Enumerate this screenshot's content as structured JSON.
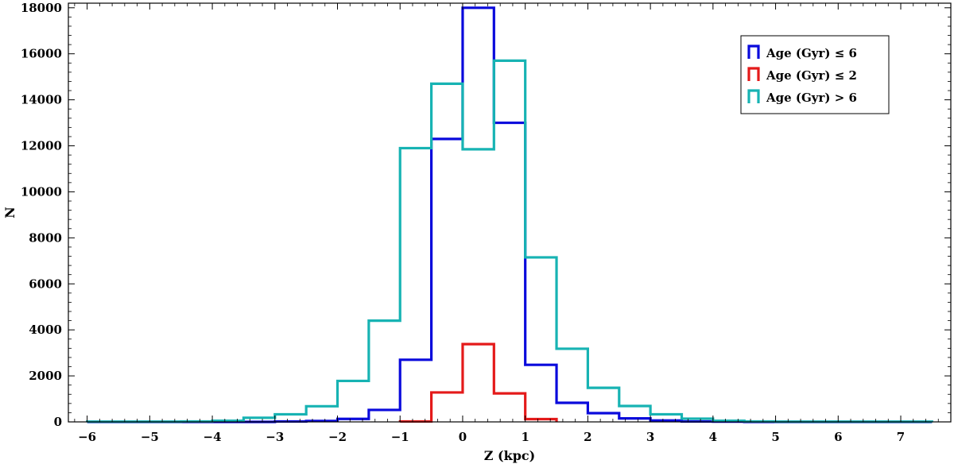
{
  "chart_data": {
    "type": "histogram",
    "xlabel": "Z (kpc)",
    "ylabel": "N",
    "xlim": [
      -6.3,
      7.8
    ],
    "ylim": [
      0,
      18200
    ],
    "xticks": [
      -6,
      -5,
      -4,
      -3,
      -2,
      -1,
      0,
      1,
      2,
      3,
      4,
      5,
      6,
      7
    ],
    "xtick_labels": [
      "−6",
      "−5",
      "−4",
      "−3",
      "−2",
      "−1",
      "0",
      "1",
      "2",
      "3",
      "4",
      "5",
      "6",
      "7"
    ],
    "yticks": [
      0,
      2000,
      4000,
      6000,
      8000,
      10000,
      12000,
      14000,
      16000,
      18000
    ],
    "ytick_labels": [
      "0",
      "2000",
      "4000",
      "6000",
      "8000",
      "10000",
      "12000",
      "14000",
      "16000",
      "18000"
    ],
    "legend_position": "top-right",
    "series": [
      {
        "name": "Age (Gyr) ≤ 6",
        "color": "#0a0adc",
        "bin_edges": [
          -6,
          -5.5,
          -5,
          -4.5,
          -4,
          -3.5,
          -3,
          -2.5,
          -2,
          -1.5,
          -1,
          -0.5,
          0,
          0.5,
          1,
          1.5,
          2,
          2.5,
          3,
          3.5,
          4,
          4.5,
          5,
          5.5,
          6,
          6.5,
          7,
          7.5
        ],
        "counts": [
          0,
          0,
          0,
          0,
          0,
          0,
          20,
          40,
          130,
          520,
          2700,
          12300,
          18000,
          13000,
          2480,
          830,
          380,
          150,
          60,
          20,
          10,
          0,
          0,
          0,
          0,
          0,
          0
        ]
      },
      {
        "name": "Age (Gyr) ≤ 2",
        "color": "#e41a1a",
        "bin_edges": [
          -1,
          -0.5,
          0,
          0.5,
          1,
          1.5
        ],
        "counts": [
          20,
          1280,
          3380,
          1240,
          120
        ]
      },
      {
        "name": "Age (Gyr) > 6",
        "color": "#17b3b3",
        "bin_edges": [
          -6,
          -5.5,
          -5,
          -4.5,
          -4,
          -3.5,
          -3,
          -2.5,
          -2,
          -1.5,
          -1,
          -0.5,
          0,
          0.5,
          1,
          1.5,
          2,
          2.5,
          3,
          3.5,
          4,
          4.5,
          5,
          5.5,
          6,
          6.5,
          7,
          7.5
        ],
        "counts": [
          10,
          10,
          10,
          20,
          50,
          180,
          330,
          680,
          1780,
          4400,
          11900,
          14700,
          11850,
          15700,
          7150,
          3180,
          1480,
          690,
          330,
          140,
          50,
          20,
          10,
          10,
          10,
          10,
          10
        ]
      }
    ]
  }
}
